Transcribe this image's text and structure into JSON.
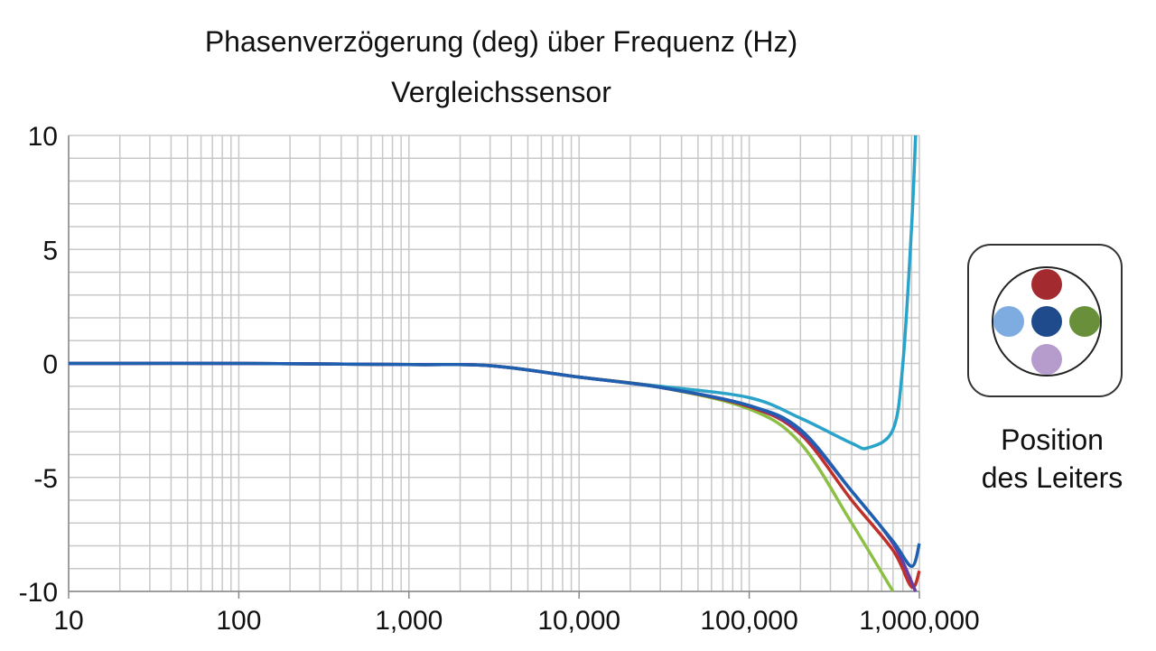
{
  "chart_data": {
    "type": "line",
    "title": "Phasenverzögerung (deg) über Frequenz (Hz)",
    "subtitle": "Vergleichssensor",
    "xlabel": "",
    "ylabel": "",
    "xscale": "log",
    "xlim": [
      10,
      1000000
    ],
    "ylim": [
      -10,
      10
    ],
    "xticks": [
      10,
      100,
      1000,
      10000,
      100000,
      1000000
    ],
    "xtick_labels": [
      "10",
      "100",
      "1,000",
      "10,000",
      "100,000",
      "1,000,000"
    ],
    "yticks": [
      10,
      5,
      0,
      -5,
      -10
    ],
    "ytick_labels": [
      "10",
      "5",
      "0",
      "-5",
      "-10"
    ],
    "grid": true,
    "series": [
      {
        "color": "#2aa3c9",
        "x": [
          10,
          100,
          1000,
          3000,
          10000,
          30000,
          100000,
          200000,
          400000,
          500000,
          700000,
          800000,
          900000,
          950000
        ],
        "y": [
          0,
          0,
          -0.05,
          -0.1,
          -0.6,
          -1.0,
          -1.5,
          -2.4,
          -3.5,
          -3.7,
          -2.9,
          0,
          6,
          10
        ]
      },
      {
        "color": "#8cc045",
        "x": [
          10,
          100,
          1000,
          3000,
          10000,
          30000,
          100000,
          200000,
          400000,
          700000
        ],
        "y": [
          0,
          0,
          -0.05,
          -0.1,
          -0.6,
          -1.05,
          -2.0,
          -3.5,
          -7.0,
          -10
        ]
      },
      {
        "color": "#c0302a",
        "x": [
          10,
          100,
          1000,
          3000,
          10000,
          30000,
          100000,
          200000,
          400000,
          700000,
          900000,
          1000000
        ],
        "y": [
          0,
          0,
          -0.05,
          -0.1,
          -0.6,
          -1.05,
          -1.9,
          -3.1,
          -6.0,
          -8.2,
          -9.8,
          -9.1
        ]
      },
      {
        "color": "#6a3ea0",
        "x": [
          10,
          100,
          1000,
          3000,
          10000,
          30000,
          100000,
          200000,
          400000,
          700000,
          950000
        ],
        "y": [
          0,
          0,
          -0.05,
          -0.1,
          -0.6,
          -1.05,
          -1.85,
          -3.0,
          -5.6,
          -7.9,
          -10
        ]
      },
      {
        "color": "#1f5fb0",
        "x": [
          10,
          100,
          1000,
          3000,
          10000,
          30000,
          100000,
          200000,
          400000,
          700000,
          900000,
          1000000
        ],
        "y": [
          0,
          0,
          -0.05,
          -0.1,
          -0.6,
          -1.05,
          -1.85,
          -2.9,
          -5.6,
          -7.8,
          -8.9,
          -7.9
        ]
      }
    ]
  },
  "legend": {
    "label_line1": "Position",
    "label_line2": "des Leiters",
    "dots": [
      {
        "position": "top",
        "color": "#a32a2e"
      },
      {
        "position": "left",
        "color": "#7eabe0"
      },
      {
        "position": "center",
        "color": "#1f4a8c"
      },
      {
        "position": "right",
        "color": "#6a8f3a"
      },
      {
        "position": "bottom",
        "color": "#b59ccc"
      }
    ]
  }
}
